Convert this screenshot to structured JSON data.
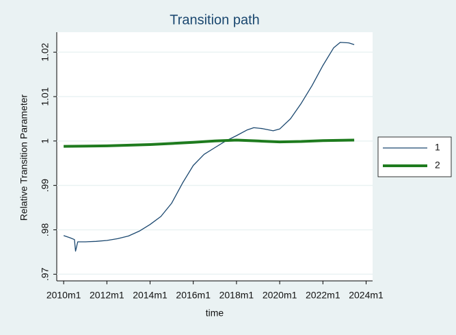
{
  "chart_data": {
    "type": "line",
    "title": "Transition path",
    "xlabel": "time",
    "ylabel": "Relative Transition Parameter",
    "xlim": [
      2009.68,
      2024.3
    ],
    "ylim": [
      0.9685,
      1.0245
    ],
    "xticks": [
      {
        "value": 2010,
        "label": "2010m1"
      },
      {
        "value": 2012,
        "label": "2012m1"
      },
      {
        "value": 2014,
        "label": "2014m1"
      },
      {
        "value": 2016,
        "label": "2016m1"
      },
      {
        "value": 2018,
        "label": "2018m1"
      },
      {
        "value": 2020,
        "label": "2020m1"
      },
      {
        "value": 2022,
        "label": "2022m1"
      },
      {
        "value": 2024,
        "label": "2024m1"
      }
    ],
    "yticks": [
      {
        "value": 0.97,
        "label": ".97"
      },
      {
        "value": 0.98,
        "label": ".98"
      },
      {
        "value": 0.99,
        "label": ".99"
      },
      1,
      1.01,
      1.02
    ],
    "grid": true,
    "legend": "right",
    "series": [
      {
        "name": "1",
        "color": "#1a476f",
        "width": 1.3,
        "x": [
          2010.0,
          2010.3,
          2010.5,
          2010.55,
          2010.65,
          2011.0,
          2011.5,
          2012.0,
          2012.5,
          2013.0,
          2013.5,
          2014.0,
          2014.5,
          2015.0,
          2015.5,
          2016.0,
          2016.5,
          2017.0,
          2017.5,
          2018.0,
          2018.5,
          2018.8,
          2019.2,
          2019.7,
          2020.0,
          2020.5,
          2021.0,
          2021.5,
          2022.0,
          2022.5,
          2022.8,
          2023.2,
          2023.45
        ],
        "values": [
          0.9787,
          0.9782,
          0.9778,
          0.9752,
          0.9773,
          0.9773,
          0.9774,
          0.9776,
          0.978,
          0.9786,
          0.9797,
          0.9812,
          0.983,
          0.986,
          0.9905,
          0.9945,
          0.997,
          0.9985,
          1.0,
          1.0012,
          1.0025,
          1.003,
          1.0028,
          1.0023,
          1.0027,
          1.005,
          1.0085,
          1.0125,
          1.017,
          1.021,
          1.0222,
          1.0221,
          1.0217
        ]
      },
      {
        "name": "2",
        "color": "#1e7b1e",
        "width": 4,
        "x": [
          2010.0,
          2012.0,
          2014.0,
          2016.0,
          2017.0,
          2018.0,
          2019.0,
          2020.0,
          2021.0,
          2022.0,
          2023.45
        ],
        "values": [
          0.9988,
          0.9989,
          0.9992,
          0.9997,
          1.0,
          1.0002,
          1.0,
          0.9998,
          0.9999,
          1.0001,
          1.0002
        ]
      }
    ]
  }
}
